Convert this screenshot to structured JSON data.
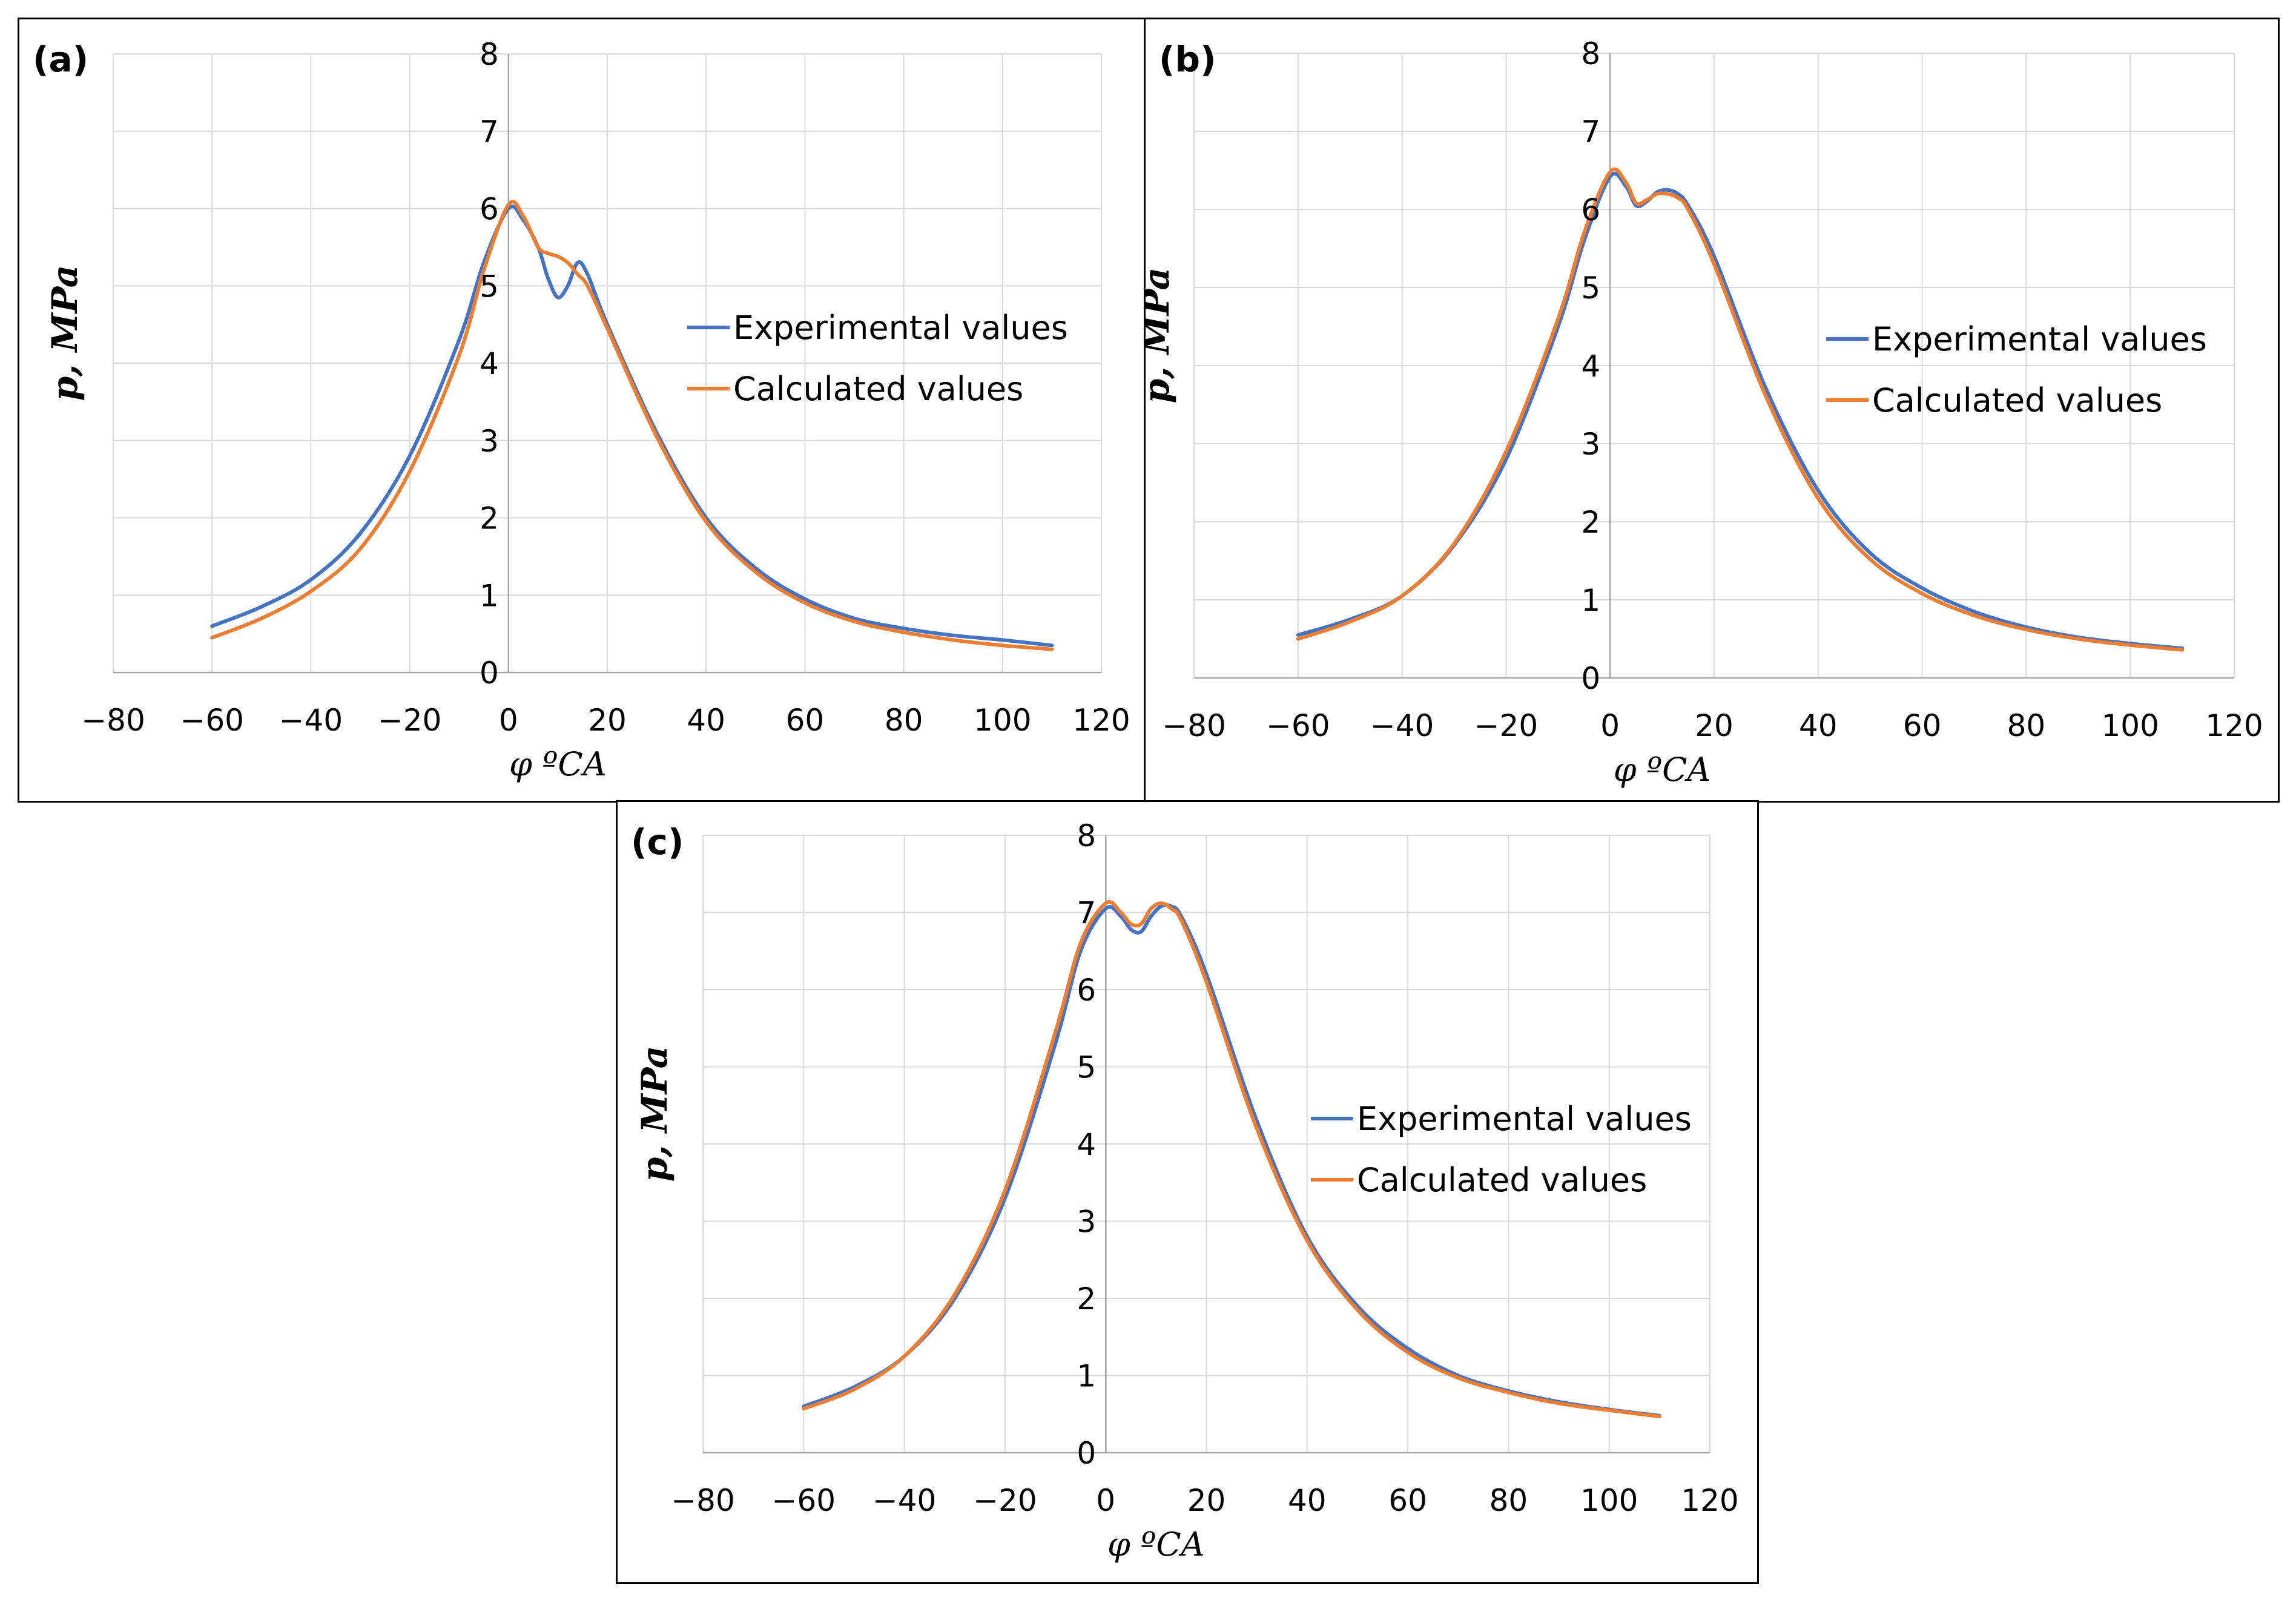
{
  "chart_data": [
    {
      "type": "line",
      "panel_label": "(a)",
      "xlabel": "φ ºCA",
      "ylabel": "p, MPa",
      "xlim": [
        -80,
        120
      ],
      "ylim": [
        0,
        8
      ],
      "xticks": [
        "−80",
        "−60",
        "−40",
        "−20",
        "0",
        "20",
        "40",
        "60",
        "80",
        "100",
        "120"
      ],
      "yticks": [
        "0",
        "1",
        "2",
        "3",
        "4",
        "5",
        "6",
        "7",
        "8"
      ],
      "grid": true,
      "legend": "right-middle",
      "series": [
        {
          "name": "Experimental values",
          "color": "#4472C4",
          "x": [
            -60,
            -50,
            -40,
            -30,
            -20,
            -10,
            -5,
            0,
            3,
            6,
            8,
            10,
            12,
            14,
            16,
            20,
            30,
            40,
            50,
            60,
            70,
            80,
            90,
            100,
            110
          ],
          "y": [
            0.6,
            0.85,
            1.2,
            1.8,
            2.8,
            4.3,
            5.3,
            6.0,
            5.85,
            5.5,
            5.1,
            4.85,
            5.0,
            5.3,
            5.15,
            4.5,
            3.1,
            2.0,
            1.35,
            0.95,
            0.7,
            0.57,
            0.48,
            0.42,
            0.35
          ]
        },
        {
          "name": "Calculated values",
          "color": "#ED7D31",
          "x": [
            -60,
            -50,
            -40,
            -30,
            -20,
            -10,
            -5,
            0,
            3,
            6,
            8,
            10,
            12,
            14,
            16,
            20,
            30,
            40,
            50,
            60,
            70,
            80,
            90,
            100,
            110
          ],
          "y": [
            0.45,
            0.7,
            1.05,
            1.6,
            2.6,
            4.1,
            5.2,
            6.05,
            5.9,
            5.5,
            5.42,
            5.38,
            5.3,
            5.15,
            5.0,
            4.45,
            3.05,
            1.95,
            1.3,
            0.9,
            0.66,
            0.52,
            0.42,
            0.35,
            0.3
          ]
        }
      ]
    },
    {
      "type": "line",
      "panel_label": "(b)",
      "xlabel": "φ ºCA",
      "ylabel": "p, MPa",
      "xlim": [
        -80,
        120
      ],
      "ylim": [
        0,
        8
      ],
      "xticks": [
        "−80",
        "−60",
        "−40",
        "−20",
        "0",
        "20",
        "40",
        "60",
        "80",
        "100",
        "120"
      ],
      "yticks": [
        "0",
        "1",
        "2",
        "3",
        "4",
        "5",
        "6",
        "7",
        "8"
      ],
      "grid": true,
      "legend": "right-middle",
      "series": [
        {
          "name": "Experimental values",
          "color": "#4472C4",
          "x": [
            -60,
            -50,
            -40,
            -30,
            -20,
            -10,
            -5,
            0,
            3,
            5,
            7,
            9,
            11,
            13,
            15,
            20,
            30,
            40,
            50,
            60,
            70,
            80,
            90,
            100,
            110
          ],
          "y": [
            0.55,
            0.75,
            1.05,
            1.7,
            2.8,
            4.5,
            5.6,
            6.42,
            6.3,
            6.05,
            6.1,
            6.22,
            6.25,
            6.2,
            6.05,
            5.4,
            3.7,
            2.4,
            1.6,
            1.15,
            0.85,
            0.65,
            0.52,
            0.44,
            0.38
          ]
        },
        {
          "name": "Calculated values",
          "color": "#ED7D31",
          "x": [
            -60,
            -50,
            -40,
            -30,
            -20,
            -10,
            -5,
            0,
            3,
            5,
            7,
            9,
            11,
            13,
            15,
            20,
            30,
            40,
            50,
            60,
            70,
            80,
            90,
            100,
            110
          ],
          "y": [
            0.5,
            0.72,
            1.05,
            1.72,
            2.9,
            4.6,
            5.7,
            6.48,
            6.35,
            6.08,
            6.12,
            6.2,
            6.2,
            6.15,
            6.0,
            5.3,
            3.6,
            2.3,
            1.52,
            1.08,
            0.8,
            0.62,
            0.5,
            0.42,
            0.36
          ]
        }
      ]
    },
    {
      "type": "line",
      "panel_label": "(c)",
      "xlabel": "φ ºCA",
      "ylabel": "p, MPa",
      "xlim": [
        -80,
        120
      ],
      "ylim": [
        0,
        8
      ],
      "xticks": [
        "−80",
        "−60",
        "−40",
        "−20",
        "0",
        "20",
        "40",
        "60",
        "80",
        "100",
        "120"
      ],
      "yticks": [
        "0",
        "1",
        "2",
        "3",
        "4",
        "5",
        "6",
        "7",
        "8"
      ],
      "grid": true,
      "legend": "right-middle",
      "series": [
        {
          "name": "Experimental values",
          "color": "#4472C4",
          "x": [
            -60,
            -50,
            -40,
            -30,
            -20,
            -10,
            -5,
            0,
            3,
            5,
            7,
            9,
            11,
            13,
            15,
            20,
            30,
            40,
            50,
            60,
            70,
            80,
            90,
            100,
            110
          ],
          "y": [
            0.6,
            0.85,
            1.25,
            2.0,
            3.3,
            5.3,
            6.5,
            7.05,
            6.95,
            6.78,
            6.75,
            6.95,
            7.08,
            7.08,
            6.95,
            6.2,
            4.3,
            2.8,
            1.9,
            1.35,
            1.0,
            0.8,
            0.66,
            0.56,
            0.48
          ]
        },
        {
          "name": "Calculated values",
          "color": "#ED7D31",
          "x": [
            -60,
            -50,
            -40,
            -30,
            -20,
            -10,
            -5,
            0,
            3,
            5,
            7,
            9,
            11,
            13,
            15,
            20,
            30,
            40,
            50,
            60,
            70,
            80,
            90,
            100,
            110
          ],
          "y": [
            0.57,
            0.82,
            1.25,
            2.05,
            3.4,
            5.45,
            6.6,
            7.12,
            7.0,
            6.85,
            6.85,
            7.05,
            7.12,
            7.05,
            6.9,
            6.1,
            4.2,
            2.75,
            1.85,
            1.3,
            0.97,
            0.78,
            0.64,
            0.55,
            0.47
          ]
        }
      ]
    }
  ]
}
